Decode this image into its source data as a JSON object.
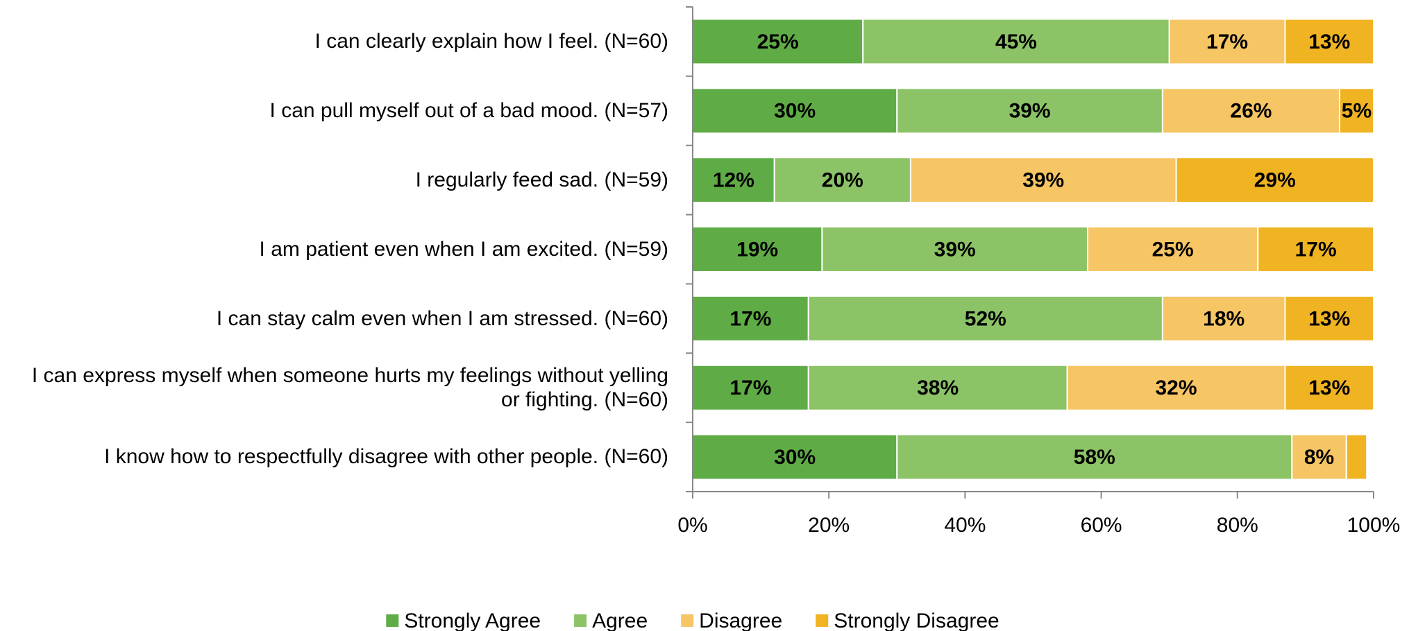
{
  "chart_data": {
    "type": "stacked_bar_horizontal",
    "categories": [
      "I can clearly explain how I feel. (N=60)",
      "I can pull  myself out of a bad mood. (N=57)",
      "I regularly feed sad. (N=59)",
      "I am patient even when I am excited. (N=59)",
      "I can stay calm even when I am stressed. (N=60)",
      "I can express myself when someone hurts my feelings without yelling or fighting. (N=60)",
      "I know how to respectfully disagree with other people. (N=60)"
    ],
    "series": [
      {
        "name": "Strongly Agree",
        "color": "#5fac46",
        "values": [
          25,
          30,
          12,
          19,
          17,
          17,
          30
        ],
        "value_labels": [
          "25%",
          "30%",
          "12%",
          "19%",
          "17%",
          "17%",
          "30%"
        ]
      },
      {
        "name": "Agree",
        "color": "#8cc366",
        "values": [
          45,
          39,
          20,
          39,
          52,
          38,
          58
        ],
        "value_labels": [
          "45%",
          "39%",
          "20%",
          "39%",
          "52%",
          "38%",
          "58%"
        ]
      },
      {
        "name": "Disagree",
        "color": "#f6c564",
        "values": [
          17,
          26,
          39,
          25,
          18,
          32,
          8
        ],
        "value_labels": [
          "17%",
          "26%",
          "39%",
          "25%",
          "18%",
          "32%",
          "8%"
        ]
      },
      {
        "name": "Strongly Disagree",
        "color": "#f0b322",
        "values": [
          13,
          5,
          29,
          17,
          13,
          13,
          3
        ],
        "value_labels": [
          "13%",
          "5%",
          "29%",
          "17%",
          "13%",
          "13%",
          null
        ]
      }
    ],
    "xlim": [
      0,
      100
    ],
    "xticks": [
      {
        "value": 0,
        "label": "0%"
      },
      {
        "value": 20,
        "label": "20%"
      },
      {
        "value": 40,
        "label": "40%"
      },
      {
        "value": 60,
        "label": "60%"
      },
      {
        "value": 80,
        "label": "80%"
      },
      {
        "value": 100,
        "label": "100%"
      }
    ],
    "legend": "bottom"
  }
}
